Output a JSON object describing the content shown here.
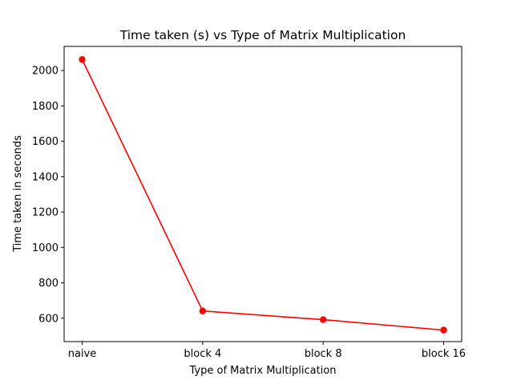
{
  "chart_data": {
    "type": "line",
    "title": "Time taken (s) vs Type of Matrix Multiplication",
    "xlabel": "Type of Matrix Multiplication",
    "ylabel": "Time taken in seconds",
    "categories": [
      "naive",
      "block 4",
      "block 8",
      "block 16"
    ],
    "series": [
      {
        "values": [
          2062,
          641,
          592,
          533
        ],
        "color": "#ff0000",
        "marker": "circle"
      }
    ],
    "ylim": [
      468,
      2136
    ],
    "yticks": [
      600,
      800,
      1000,
      1200,
      1400,
      1600,
      1800,
      2000
    ],
    "grid": false,
    "legend": "none"
  }
}
